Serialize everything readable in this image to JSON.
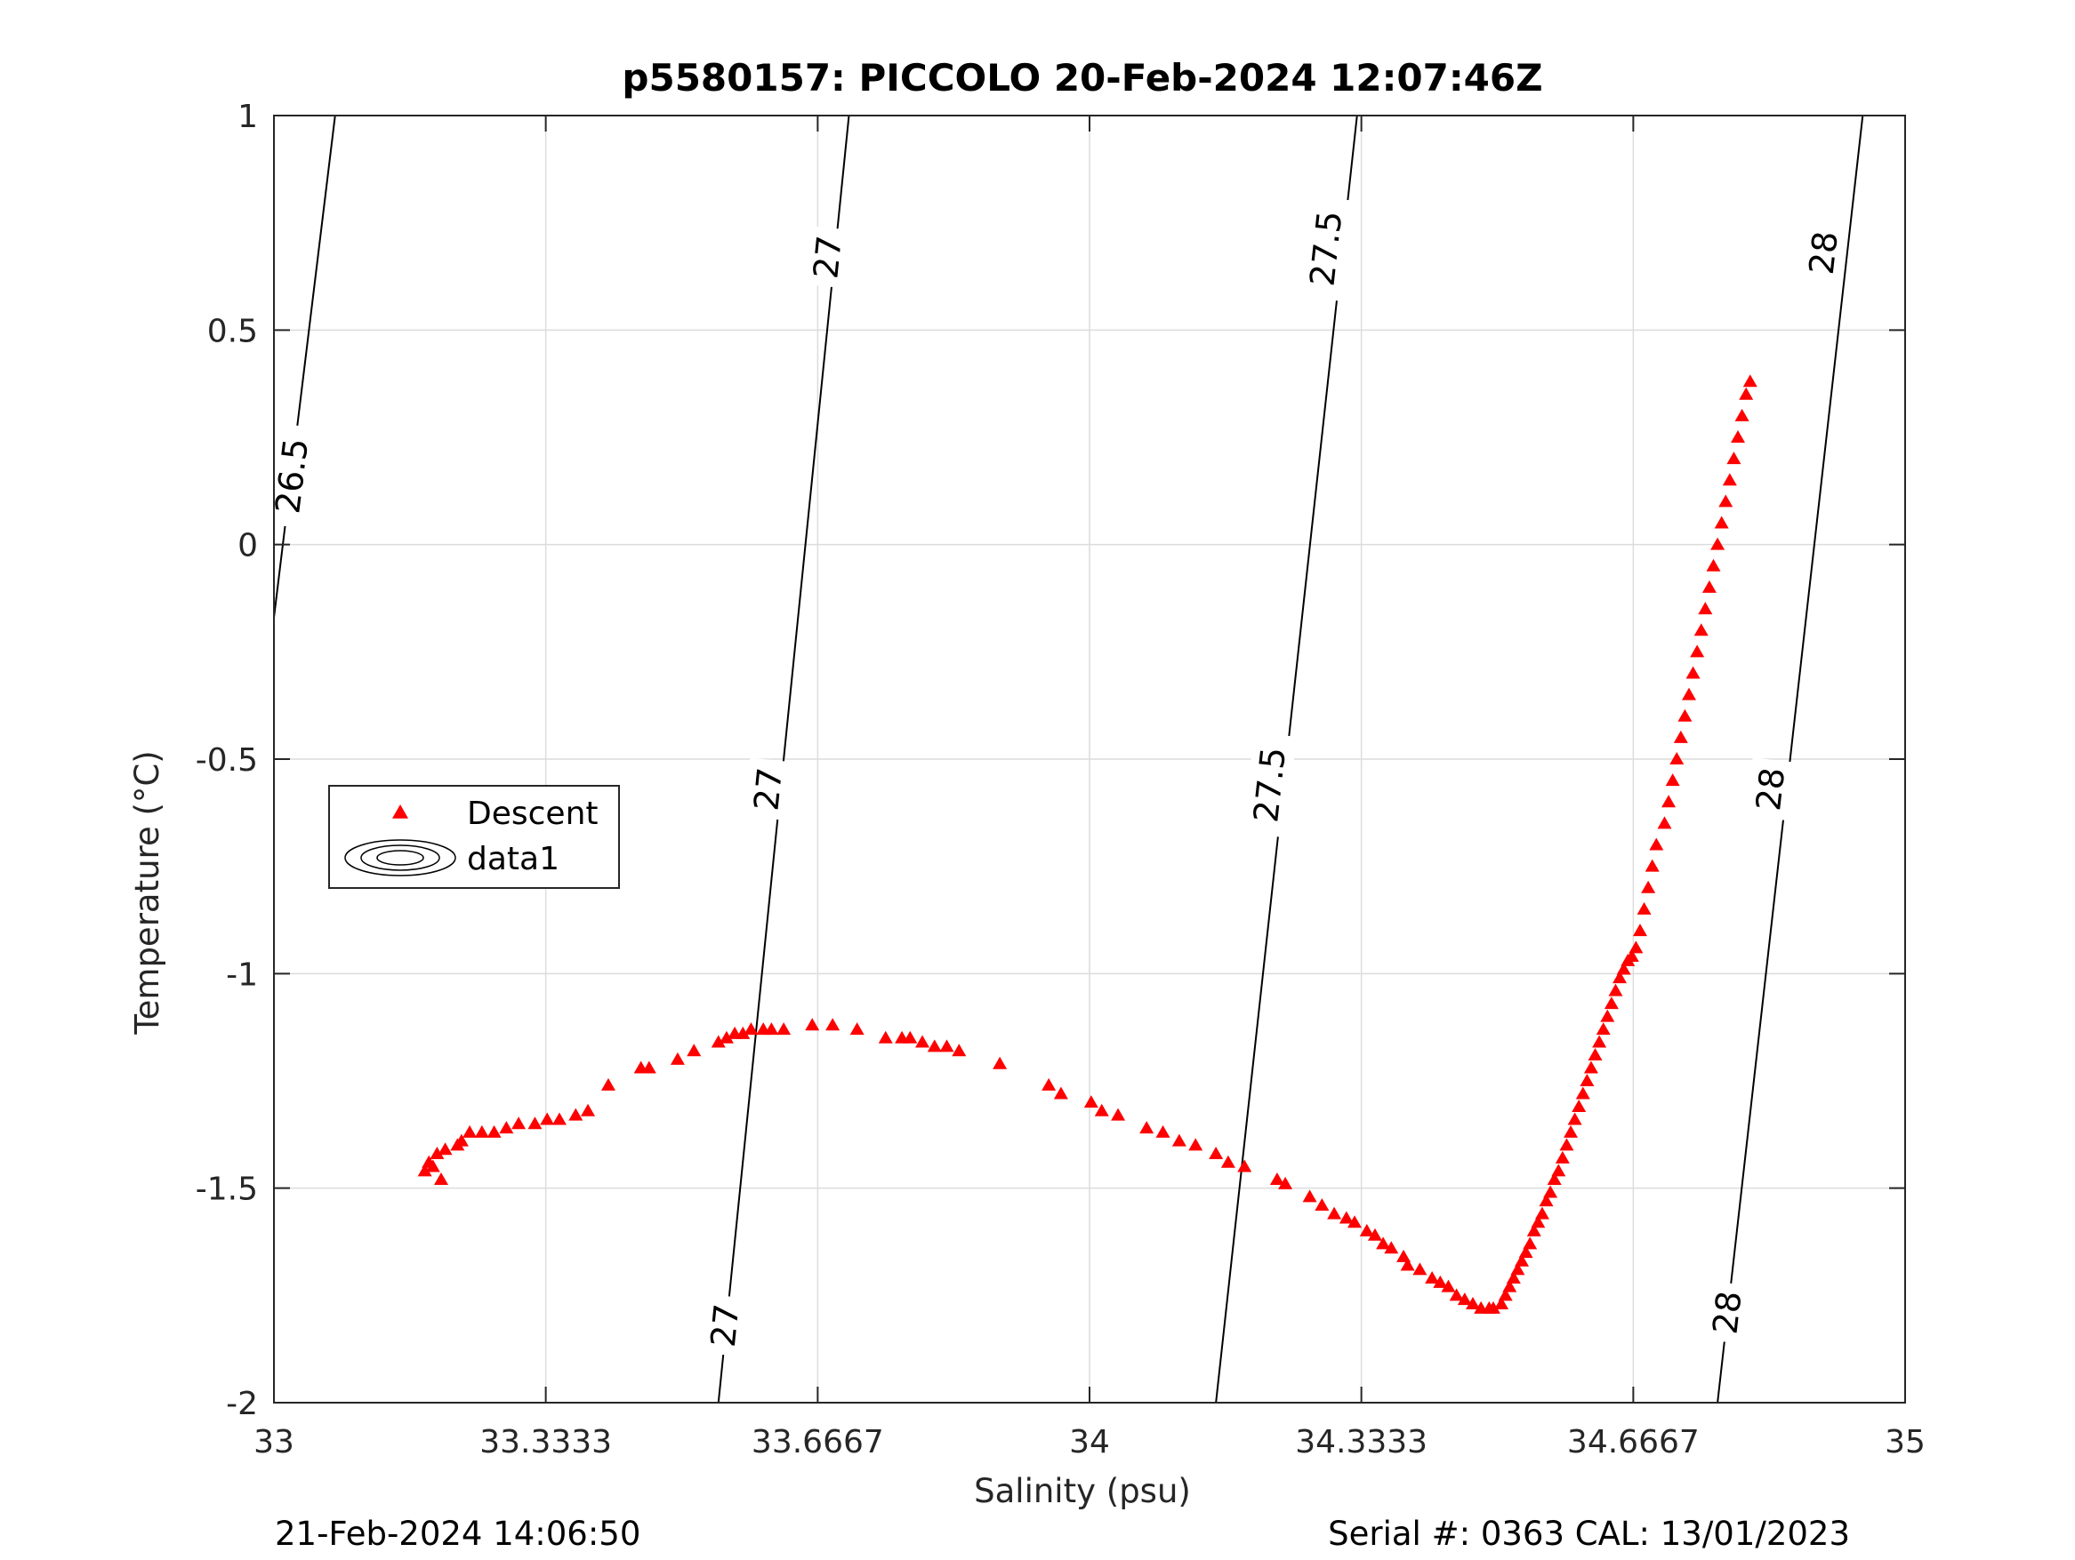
{
  "chart_data": {
    "type": "scatter",
    "title": "p5580157: PICCOLO 20-Feb-2024 12:07:46Z",
    "xlabel": "Salinity (psu)",
    "ylabel": "Temperature (°C)",
    "xlim": [
      33,
      35
    ],
    "ylim": [
      -2,
      1
    ],
    "x_ticks": [
      33,
      33.3333,
      33.6667,
      34,
      34.3333,
      34.6667,
      35
    ],
    "x_tick_labels": [
      "33",
      "33.3333",
      "33.6667",
      "34",
      "34.3333",
      "34.6667",
      "35"
    ],
    "y_ticks": [
      -2,
      -1.5,
      -1,
      -0.5,
      0,
      0.5,
      1
    ],
    "y_tick_labels": [
      "-2",
      "-1.5",
      "-1",
      "-0.5",
      "0",
      "0.5",
      "1"
    ],
    "grid": true,
    "legend_position": "middle-left",
    "legend": [
      {
        "label": "Descent",
        "marker": "triangle",
        "color": "#ff0000"
      },
      {
        "label": "data1",
        "marker": "contour",
        "color": "#000000"
      }
    ],
    "contours": [
      {
        "level": "26.5",
        "line": [
          [
            33.0,
            -0.17
          ],
          [
            33.075,
            1.0
          ]
        ],
        "labels": [
          {
            "text": "26.5",
            "x": 33.022,
            "y": 0.16
          }
        ]
      },
      {
        "level": "27",
        "line": [
          [
            33.545,
            -2.0
          ],
          [
            33.705,
            1.0
          ]
        ],
        "labels": [
          {
            "text": "27",
            "x": 33.553,
            "y": -1.82
          },
          {
            "text": "27",
            "x": 33.606,
            "y": -0.57
          },
          {
            "text": "27",
            "x": 33.679,
            "y": 0.67
          }
        ]
      },
      {
        "level": "27.5",
        "line": [
          [
            34.155,
            -2.0
          ],
          [
            34.328,
            1.0
          ]
        ],
        "labels": [
          {
            "text": "27.5",
            "x": 34.221,
            "y": -0.56
          },
          {
            "text": "27.5",
            "x": 34.29,
            "y": 0.69
          }
        ]
      },
      {
        "level": "28",
        "line": [
          [
            34.77,
            -2.0
          ],
          [
            34.948,
            1.0
          ]
        ],
        "labels": [
          {
            "text": "28",
            "x": 34.782,
            "y": -1.79
          },
          {
            "text": "28",
            "x": 34.835,
            "y": -0.57
          },
          {
            "text": "28",
            "x": 34.9,
            "y": 0.68
          }
        ]
      }
    ],
    "series": [
      {
        "name": "Descent",
        "color": "#ff0000",
        "marker": "triangle",
        "points": [
          [
            33.185,
            -1.46
          ],
          [
            33.19,
            -1.44
          ],
          [
            33.195,
            -1.45
          ],
          [
            33.2,
            -1.42
          ],
          [
            33.205,
            -1.48
          ],
          [
            33.21,
            -1.41
          ],
          [
            33.225,
            -1.4
          ],
          [
            33.23,
            -1.39
          ],
          [
            33.24,
            -1.37
          ],
          [
            33.255,
            -1.37
          ],
          [
            33.27,
            -1.37
          ],
          [
            33.285,
            -1.36
          ],
          [
            33.3,
            -1.35
          ],
          [
            33.32,
            -1.35
          ],
          [
            33.335,
            -1.34
          ],
          [
            33.35,
            -1.34
          ],
          [
            33.37,
            -1.33
          ],
          [
            33.385,
            -1.32
          ],
          [
            33.41,
            -1.26
          ],
          [
            33.45,
            -1.22
          ],
          [
            33.46,
            -1.22
          ],
          [
            33.495,
            -1.2
          ],
          [
            33.515,
            -1.18
          ],
          [
            33.545,
            -1.16
          ],
          [
            33.555,
            -1.15
          ],
          [
            33.565,
            -1.14
          ],
          [
            33.575,
            -1.14
          ],
          [
            33.585,
            -1.13
          ],
          [
            33.6,
            -1.13
          ],
          [
            33.61,
            -1.13
          ],
          [
            33.625,
            -1.13
          ],
          [
            33.66,
            -1.12
          ],
          [
            33.685,
            -1.12
          ],
          [
            33.715,
            -1.13
          ],
          [
            33.75,
            -1.15
          ],
          [
            33.77,
            -1.15
          ],
          [
            33.78,
            -1.15
          ],
          [
            33.795,
            -1.16
          ],
          [
            33.81,
            -1.17
          ],
          [
            33.825,
            -1.17
          ],
          [
            33.84,
            -1.18
          ],
          [
            33.89,
            -1.21
          ],
          [
            33.95,
            -1.26
          ],
          [
            33.965,
            -1.28
          ],
          [
            34.002,
            -1.3
          ],
          [
            34.015,
            -1.32
          ],
          [
            34.035,
            -1.33
          ],
          [
            34.07,
            -1.36
          ],
          [
            34.09,
            -1.37
          ],
          [
            34.11,
            -1.39
          ],
          [
            34.13,
            -1.4
          ],
          [
            34.155,
            -1.42
          ],
          [
            34.17,
            -1.44
          ],
          [
            34.19,
            -1.45
          ],
          [
            34.23,
            -1.48
          ],
          [
            34.24,
            -1.49
          ],
          [
            34.27,
            -1.52
          ],
          [
            34.285,
            -1.54
          ],
          [
            34.3,
            -1.56
          ],
          [
            34.315,
            -1.57
          ],
          [
            34.325,
            -1.58
          ],
          [
            34.34,
            -1.6
          ],
          [
            34.35,
            -1.61
          ],
          [
            34.36,
            -1.63
          ],
          [
            34.37,
            -1.64
          ],
          [
            34.385,
            -1.66
          ],
          [
            34.39,
            -1.68
          ],
          [
            34.405,
            -1.69
          ],
          [
            34.42,
            -1.71
          ],
          [
            34.43,
            -1.72
          ],
          [
            34.44,
            -1.73
          ],
          [
            34.45,
            -1.75
          ],
          [
            34.46,
            -1.76
          ],
          [
            34.47,
            -1.77
          ],
          [
            34.48,
            -1.78
          ],
          [
            34.49,
            -1.78
          ],
          [
            34.495,
            -1.78
          ],
          [
            34.505,
            -1.77
          ],
          [
            34.51,
            -1.75
          ],
          [
            34.515,
            -1.73
          ],
          [
            34.52,
            -1.71
          ],
          [
            34.525,
            -1.69
          ],
          [
            34.53,
            -1.67
          ],
          [
            34.535,
            -1.65
          ],
          [
            34.54,
            -1.63
          ],
          [
            34.545,
            -1.6
          ],
          [
            34.55,
            -1.58
          ],
          [
            34.555,
            -1.56
          ],
          [
            34.56,
            -1.53
          ],
          [
            34.565,
            -1.51
          ],
          [
            34.57,
            -1.48
          ],
          [
            34.575,
            -1.46
          ],
          [
            34.58,
            -1.43
          ],
          [
            34.585,
            -1.4
          ],
          [
            34.59,
            -1.37
          ],
          [
            34.595,
            -1.34
          ],
          [
            34.6,
            -1.31
          ],
          [
            34.605,
            -1.28
          ],
          [
            34.61,
            -1.25
          ],
          [
            34.615,
            -1.22
          ],
          [
            34.62,
            -1.19
          ],
          [
            34.625,
            -1.16
          ],
          [
            34.63,
            -1.13
          ],
          [
            34.635,
            -1.1
          ],
          [
            34.64,
            -1.07
          ],
          [
            34.645,
            -1.04
          ],
          [
            34.65,
            -1.01
          ],
          [
            34.655,
            -0.99
          ],
          [
            34.66,
            -0.97
          ],
          [
            34.665,
            -0.96
          ],
          [
            34.67,
            -0.94
          ],
          [
            34.675,
            -0.9
          ],
          [
            34.68,
            -0.85
          ],
          [
            34.685,
            -0.8
          ],
          [
            34.69,
            -0.75
          ],
          [
            34.695,
            -0.7
          ],
          [
            34.705,
            -0.65
          ],
          [
            34.71,
            -0.6
          ],
          [
            34.715,
            -0.55
          ],
          [
            34.72,
            -0.5
          ],
          [
            34.725,
            -0.45
          ],
          [
            34.73,
            -0.4
          ],
          [
            34.735,
            -0.35
          ],
          [
            34.74,
            -0.3
          ],
          [
            34.745,
            -0.25
          ],
          [
            34.75,
            -0.2
          ],
          [
            34.755,
            -0.15
          ],
          [
            34.76,
            -0.1
          ],
          [
            34.765,
            -0.05
          ],
          [
            34.77,
            0.0
          ],
          [
            34.775,
            0.05
          ],
          [
            34.78,
            0.1
          ],
          [
            34.785,
            0.15
          ],
          [
            34.79,
            0.2
          ],
          [
            34.795,
            0.25
          ],
          [
            34.8,
            0.3
          ],
          [
            34.805,
            0.35
          ],
          [
            34.81,
            0.38
          ]
        ]
      }
    ]
  },
  "footer": {
    "timestamp": "21-Feb-2024 14:06:50",
    "serial_cal": "Serial #: 0363  CAL: 13/01/2023"
  }
}
